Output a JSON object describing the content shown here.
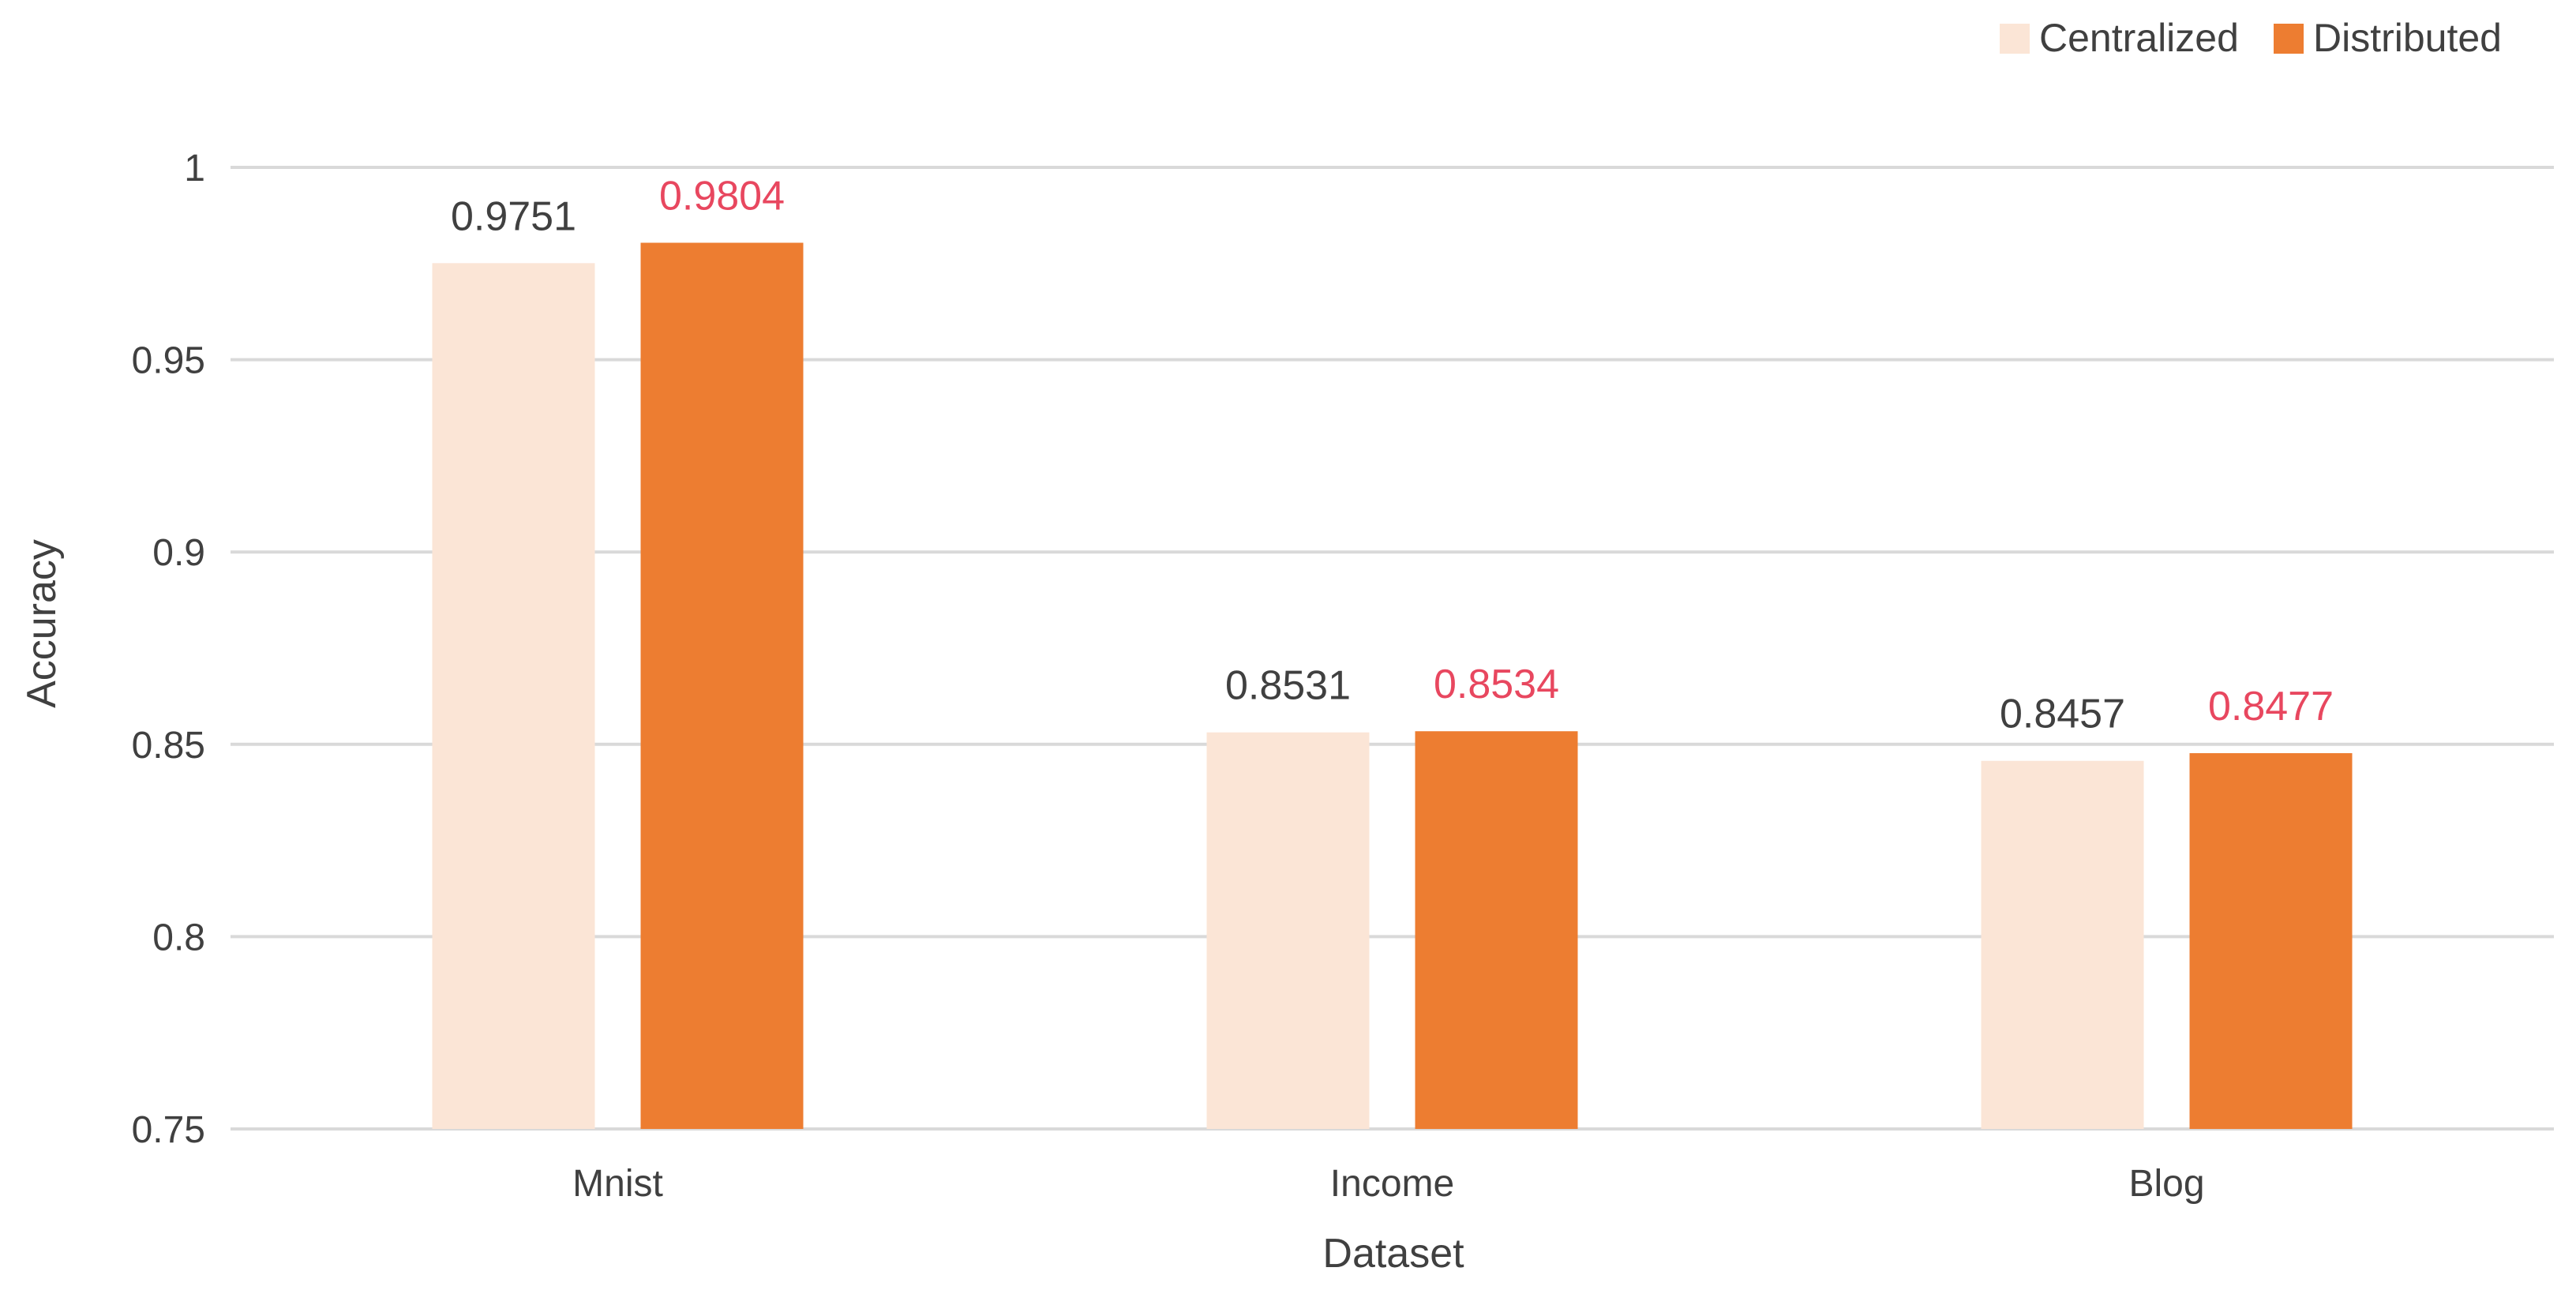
{
  "chart_data": {
    "type": "bar",
    "title": "",
    "xlabel": "Dataset",
    "ylabel": "Accuracy",
    "categories": [
      "Mnist",
      "Income",
      "Blog"
    ],
    "series": [
      {
        "name": "Centralized",
        "values": [
          0.9751,
          0.8531,
          0.8457
        ],
        "labels": [
          "0.9751",
          "0.8531",
          "0.8457"
        ],
        "color": "#FBE5D6",
        "label_color": "#404040"
      },
      {
        "name": "Distributed",
        "values": [
          0.9804,
          0.8534,
          0.8477
        ],
        "labels": [
          "0.9804",
          "0.8534",
          "0.8477"
        ],
        "color": "#ED7D31",
        "label_color": "#E8475F"
      }
    ],
    "ylim": [
      0.75,
      1
    ],
    "yticks": [
      0.75,
      0.8,
      0.85,
      0.9,
      0.95,
      1
    ],
    "ytick_labels": [
      "0.75",
      "0.8",
      "0.85",
      "0.9",
      "0.95",
      "1"
    ],
    "grid": true,
    "grid_color": "#D9D9D9",
    "legend_position": "top-right"
  }
}
